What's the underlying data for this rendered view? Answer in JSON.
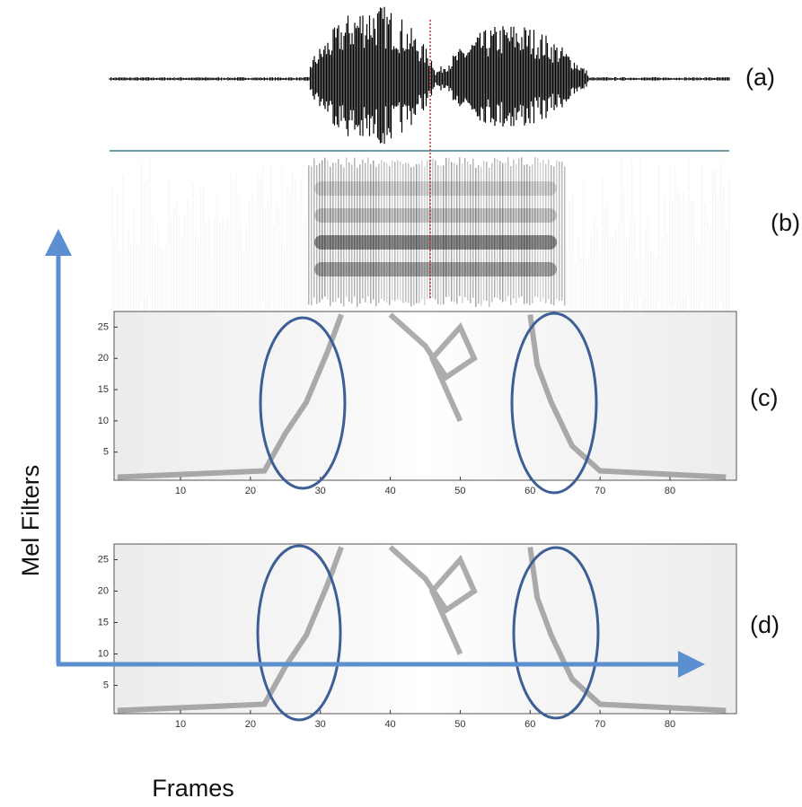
{
  "panels": [
    {
      "label": "(a)"
    },
    {
      "label": "(b)"
    },
    {
      "label": "(c)",
      "xlim": [
        0.5,
        89.5
      ],
      "ylim": [
        0.5,
        27.5
      ],
      "xticks": [
        10,
        20,
        30,
        40,
        50,
        60,
        70,
        80
      ],
      "yticks": [
        5,
        10,
        15,
        20,
        25
      ]
    },
    {
      "label": "(d)",
      "xlim": [
        0.5,
        89.5
      ],
      "ylim": [
        0.5,
        27.5
      ],
      "xticks": [
        10,
        20,
        30,
        40,
        50,
        60,
        70,
        80
      ],
      "yticks": [
        5,
        10,
        15,
        20,
        25
      ]
    }
  ],
  "axes": {
    "y_label": "Mel Filters",
    "x_label": "Frames"
  }
}
